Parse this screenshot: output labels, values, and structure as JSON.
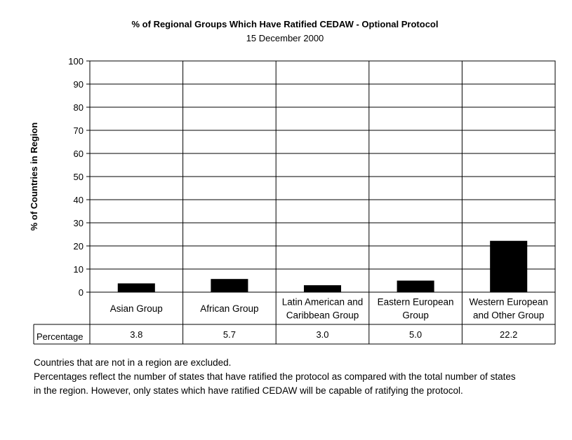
{
  "chart_data": {
    "type": "bar",
    "title": "% of Regional Groups Which Have Ratified CEDAW - Optional Protocol",
    "subtitle": "15 December 2000",
    "ylabel": "% of Countries in Region",
    "xlabel": "",
    "ylim": [
      0,
      100
    ],
    "yticks": [
      0,
      10,
      20,
      30,
      40,
      50,
      60,
      70,
      80,
      90,
      100
    ],
    "grid": true,
    "categories": [
      [
        "Asian Group"
      ],
      [
        "African Group"
      ],
      [
        "Latin American and",
        "Caribbean Group"
      ],
      [
        "Eastern European",
        "Group"
      ],
      [
        "Western European",
        "and Other Group"
      ]
    ],
    "series": [
      {
        "name": "Percentage",
        "values": [
          3.8,
          5.7,
          3.0,
          5.0,
          22.2
        ]
      }
    ],
    "value_labels": [
      "3.8",
      "5.7",
      "3.0",
      "5.0",
      "22.2"
    ],
    "bar_color": "#000000"
  },
  "notes": [
    "Countries that are not in a region are excluded.",
    "Percentages reflect the number of states that have ratified the protocol as compared with the total number of states",
    "in the region. However, only states which have ratified CEDAW will be capable of ratifying the protocol."
  ]
}
